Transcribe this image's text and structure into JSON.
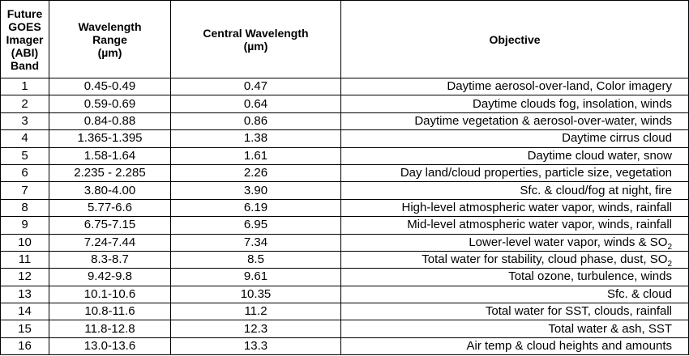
{
  "table": {
    "headers": {
      "band": [
        "Future",
        "GOES",
        "Imager",
        "(ABI)",
        "Band"
      ],
      "wavelength_range": [
        "Wavelength",
        "Range",
        "(µm)"
      ],
      "central_wavelength": [
        "Central Wavelength",
        "(µm)"
      ],
      "objective": "Objective"
    },
    "rows": [
      {
        "band": "1",
        "range": "0.45-0.49",
        "central": "0.47",
        "objective": "Daytime aerosol-over-land, Color imagery"
      },
      {
        "band": "2",
        "range": "0.59-0.69",
        "central": "0.64",
        "objective": "Daytime clouds fog, insolation, winds"
      },
      {
        "band": "3",
        "range": "0.84-0.88",
        "central": "0.86",
        "objective": "Daytime vegetation & aerosol-over-water, winds"
      },
      {
        "band": "4",
        "range": "1.365-1.395",
        "central": "1.38",
        "objective": "Daytime cirrus cloud"
      },
      {
        "band": "5",
        "range": "1.58-1.64",
        "central": "1.61",
        "objective": "Daytime cloud water, snow"
      },
      {
        "band": "6",
        "range": "2.235 - 2.285",
        "central": "2.26",
        "objective": "Day land/cloud properties, particle size, vegetation"
      },
      {
        "band": "7",
        "range": "3.80-4.00",
        "central": "3.90",
        "objective": "Sfc. & cloud/fog at night, fire"
      },
      {
        "band": "8",
        "range": "5.77-6.6",
        "central": "6.19",
        "objective": "High-level atmospheric water vapor, winds, rainfall"
      },
      {
        "band": "9",
        "range": "6.75-7.15",
        "central": "6.95",
        "objective": "Mid-level atmospheric water vapor, winds, rainfall"
      },
      {
        "band": "10",
        "range": "7.24-7.44",
        "central": "7.34",
        "objective": "Lower-level water vapor, winds & SO",
        "objective_sub": "2"
      },
      {
        "band": "11",
        "range": "8.3-8.7",
        "central": "8.5",
        "objective": "Total water for stability, cloud phase, dust, SO",
        "objective_sub": "2"
      },
      {
        "band": "12",
        "range": "9.42-9.8",
        "central": "9.61",
        "objective": "Total ozone, turbulence, winds"
      },
      {
        "band": "13",
        "range": "10.1-10.6",
        "central": "10.35",
        "objective": "Sfc. & cloud"
      },
      {
        "band": "14",
        "range": "10.8-11.6",
        "central": "11.2",
        "objective": "Total water for SST, clouds, rainfall"
      },
      {
        "band": "15",
        "range": "11.8-12.8",
        "central": "12.3",
        "objective": "Total water & ash, SST"
      },
      {
        "band": "16",
        "range": "13.0-13.6",
        "central": "13.3",
        "objective": "Air temp & cloud heights and amounts"
      }
    ]
  }
}
